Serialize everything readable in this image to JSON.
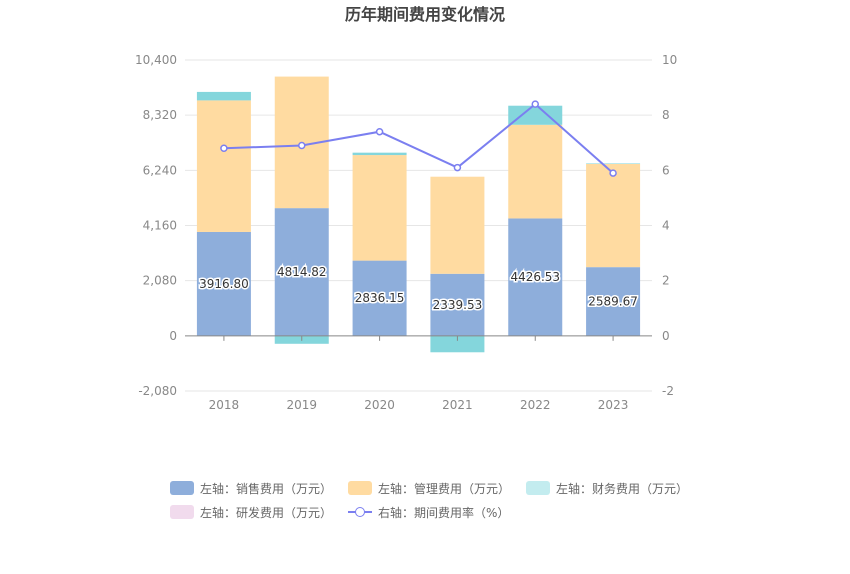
{
  "chart_data": {
    "type": "bar",
    "title": "历年期间费用变化情况",
    "categories": [
      "2018",
      "2019",
      "2020",
      "2021",
      "2022",
      "2023"
    ],
    "left_axis": {
      "min": -2080,
      "max": 10400,
      "ticks": [
        "-2,080",
        "0",
        "2,080",
        "4,160",
        "6,240",
        "8,320",
        "10,400"
      ],
      "tick_values": [
        -2080,
        0,
        2080,
        4160,
        6240,
        8320,
        10400
      ]
    },
    "right_axis": {
      "min": -2,
      "max": 10,
      "ticks": [
        "-2",
        "0",
        "2",
        "4",
        "6",
        "8",
        "10"
      ],
      "tick_values": [
        -2,
        0,
        2,
        4,
        6,
        8,
        10
      ]
    },
    "grid": true,
    "legend_position": "bottom",
    "series": [
      {
        "name": "左轴：销售费用（万元）",
        "type": "bar",
        "axis": "left",
        "color": "#8eaedb",
        "values": [
          3916.8,
          4814.82,
          2836.15,
          2339.53,
          4426.53,
          2589.67
        ],
        "labels": [
          "3916.80",
          "4814.82",
          "2836.15",
          "2339.53",
          "4426.53",
          "2589.67"
        ]
      },
      {
        "name": "左轴：管理费用（万元）",
        "type": "bar",
        "axis": "left",
        "color": "#ffdba1",
        "values": [
          4960,
          4960,
          3980,
          3660,
          3530,
          3890
        ]
      },
      {
        "name": "左轴：财务费用（万元）",
        "type": "bar",
        "axis": "left",
        "color": "#84d6dc",
        "values": [
          320,
          -300,
          90,
          -620,
          720,
          20
        ]
      },
      {
        "name": "左轴：研发费用（万元）",
        "type": "bar",
        "axis": "left",
        "color": "#f1dbed",
        "values": [
          0,
          0,
          0,
          0,
          0,
          0
        ]
      },
      {
        "name": "右轴：期间费用率（%）",
        "type": "line",
        "axis": "right",
        "color": "#7b7ff0",
        "values": [
          6.8,
          6.9,
          7.4,
          6.1,
          8.4,
          5.9
        ]
      }
    ]
  }
}
